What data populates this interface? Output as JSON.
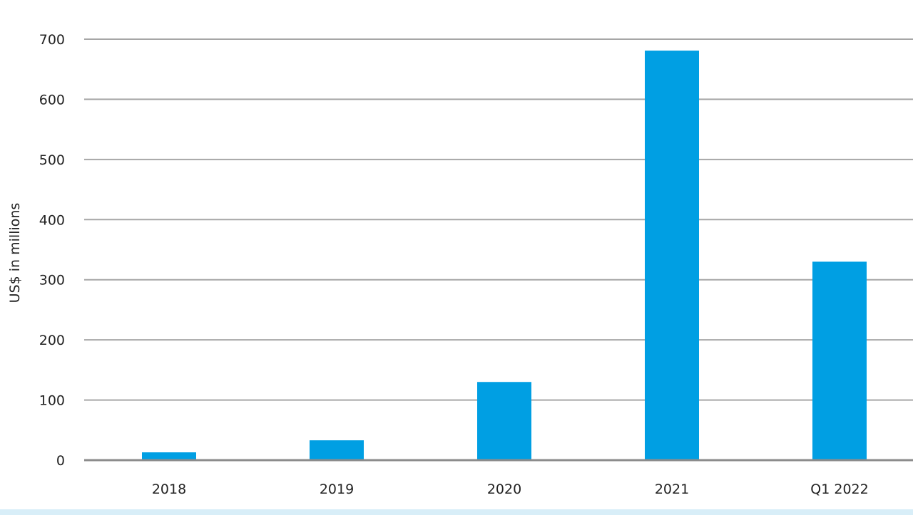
{
  "colors": {
    "bar": "#009fe3",
    "grid": "#a6a6a6",
    "baseline": "#8c8c8c",
    "bottom_strip": "#d8eef8"
  },
  "chart_data": {
    "type": "bar",
    "categories": [
      "2018",
      "2019",
      "2020",
      "2021",
      "Q1 2022"
    ],
    "values": [
      13,
      33,
      130,
      681,
      330
    ],
    "ylabel": "US$ in millions",
    "ylim": [
      0,
      700
    ],
    "yticks": [
      0,
      100,
      200,
      300,
      400,
      500,
      600,
      700
    ],
    "grid": true,
    "legend": "none"
  }
}
